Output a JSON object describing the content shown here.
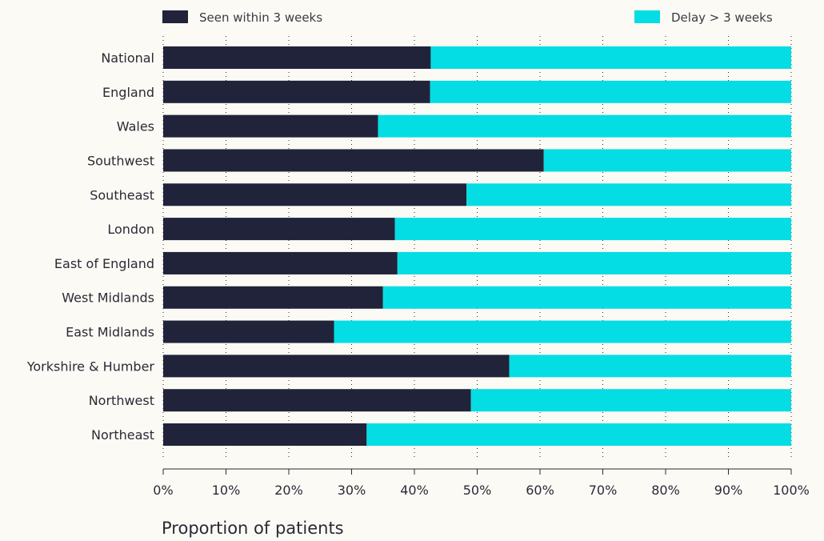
{
  "chart_data": {
    "type": "bar",
    "orientation": "horizontal",
    "stacked": true,
    "title": "",
    "xlabel": "Proportion of patients",
    "ylabel": "",
    "xlim": [
      0,
      100
    ],
    "x_ticks": [
      "0%",
      "10%",
      "20%",
      "30%",
      "40%",
      "50%",
      "60%",
      "70%",
      "80%",
      "90%",
      "100%"
    ],
    "categories": [
      "National",
      "England",
      "Wales",
      "Southwest",
      "Southeast",
      "London",
      "East of England",
      "West Midlands",
      "East Midlands",
      "Yorkshire & Humber",
      "Northwest",
      "Northeast"
    ],
    "series": [
      {
        "name": "Seen within 3 weeks",
        "color": "#20233a",
        "values": [
          42.6,
          42.5,
          34.2,
          60.6,
          48.3,
          36.9,
          37.3,
          35.0,
          27.2,
          55.1,
          49.0,
          32.4
        ]
      },
      {
        "name": "Delay > 3 weeks",
        "color": "#04dde3",
        "values": [
          57.4,
          57.5,
          65.8,
          39.4,
          51.7,
          63.1,
          62.7,
          65.0,
          72.8,
          44.9,
          51.0,
          67.6
        ]
      }
    ],
    "grid": "vertical dotted",
    "legend_position": "top"
  }
}
